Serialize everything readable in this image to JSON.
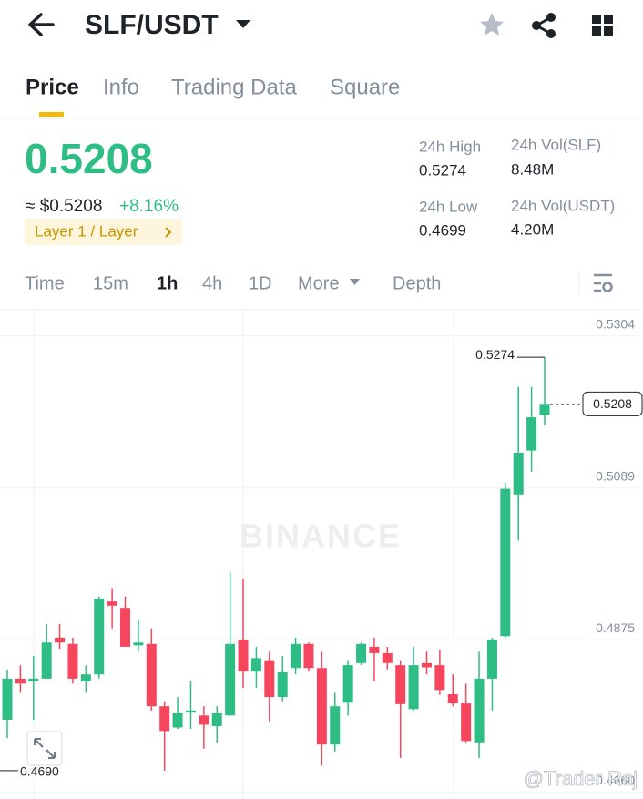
{
  "header": {
    "pair": "SLF/USDT"
  },
  "tabs": [
    "Price",
    "Info",
    "Trading Data",
    "Square"
  ],
  "price": {
    "last": "0.5208",
    "usd": "≈ $0.5208",
    "change": "+8.16%",
    "tag": "Layer 1 / Layer"
  },
  "stats": [
    {
      "label": "24h High",
      "value": "0.5274"
    },
    {
      "label": "24h Low",
      "value": "0.4699"
    },
    {
      "label": "24h Vol(SLF)",
      "value": "8.48M"
    },
    {
      "label": "24h Vol(USDT)",
      "value": "4.20M"
    }
  ],
  "intervals": [
    "Time",
    "15m",
    "1h",
    "4h",
    "1D",
    "More",
    "Depth"
  ],
  "chart_data": {
    "type": "candlestick",
    "up_color": "#2ebd85",
    "down_color": "#f6465d",
    "grid": true,
    "ylim": [
      0.465,
      0.5341
    ],
    "yticks": [
      {
        "value": 0.466,
        "label": "0.4660"
      },
      0.4875,
      0.5089,
      0.5304
    ],
    "open": [
      0.4762,
      0.482,
      0.4816,
      0.482,
      0.4878,
      0.4869,
      0.4816,
      0.4826,
      0.4929,
      0.492,
      0.4867,
      0.4869,
      0.4781,
      0.4751,
      0.4772,
      0.4768,
      0.4753,
      0.4768,
      0.4875,
      0.483,
      0.4846,
      0.4794,
      0.4835,
      0.4869,
      0.4835,
      0.4727,
      0.4786,
      0.4842,
      0.4865,
      0.4856,
      0.4839,
      0.4777,
      0.4842,
      0.4839,
      0.4798,
      0.4785,
      0.473,
      0.482,
      0.488,
      0.508,
      0.5142,
      0.5192
    ],
    "high": [
      0.4833,
      0.4839,
      0.4852,
      0.4897,
      0.4897,
      0.4878,
      0.4839,
      0.4936,
      0.4948,
      0.4936,
      0.4904,
      0.4891,
      0.4788,
      0.4794,
      0.4816,
      0.4781,
      0.4781,
      0.497,
      0.4961,
      0.4865,
      0.4858,
      0.4852,
      0.4878,
      0.4871,
      0.4858,
      0.48,
      0.4846,
      0.4871,
      0.4878,
      0.4865,
      0.4846,
      0.4865,
      0.4858,
      0.4861,
      0.4826,
      0.4813,
      0.4858,
      0.4878,
      0.5097,
      0.5232,
      0.5232,
      0.5274
    ],
    "low": [
      0.4736,
      0.48,
      0.4762,
      0.482,
      0.4862,
      0.4813,
      0.48,
      0.482,
      0.4891,
      0.4865,
      0.4858,
      0.4775,
      0.469,
      0.4749,
      0.4749,
      0.4721,
      0.473,
      0.4768,
      0.4807,
      0.4807,
      0.4759,
      0.4788,
      0.4826,
      0.483,
      0.4697,
      0.4717,
      0.4768,
      0.4839,
      0.4816,
      0.4833,
      0.4708,
      0.4775,
      0.4826,
      0.4797,
      0.4781,
      0.473,
      0.4708,
      0.4775,
      0.4878,
      0.5015,
      0.5112,
      0.5178
    ],
    "close": [
      0.482,
      0.4813,
      0.482,
      0.4871,
      0.4871,
      0.482,
      0.4826,
      0.4933,
      0.4923,
      0.4865,
      0.4871,
      0.4781,
      0.4746,
      0.4771,
      0.4775,
      0.4755,
      0.4771,
      0.4869,
      0.483,
      0.4849,
      0.4794,
      0.4829,
      0.4869,
      0.4835,
      0.4727,
      0.4781,
      0.4839,
      0.4869,
      0.4856,
      0.4842,
      0.4784,
      0.4839,
      0.4836,
      0.4804,
      0.4785,
      0.4732,
      0.482,
      0.4875,
      0.5088,
      0.5139,
      0.5189,
      0.5208
    ],
    "high_marker": 0.5274,
    "low_marker": {
      "value": 0.469,
      "label": "0.4690"
    },
    "last_price": 0.5208,
    "watermark": "BINANCE",
    "credit": "@Trader Raj"
  }
}
